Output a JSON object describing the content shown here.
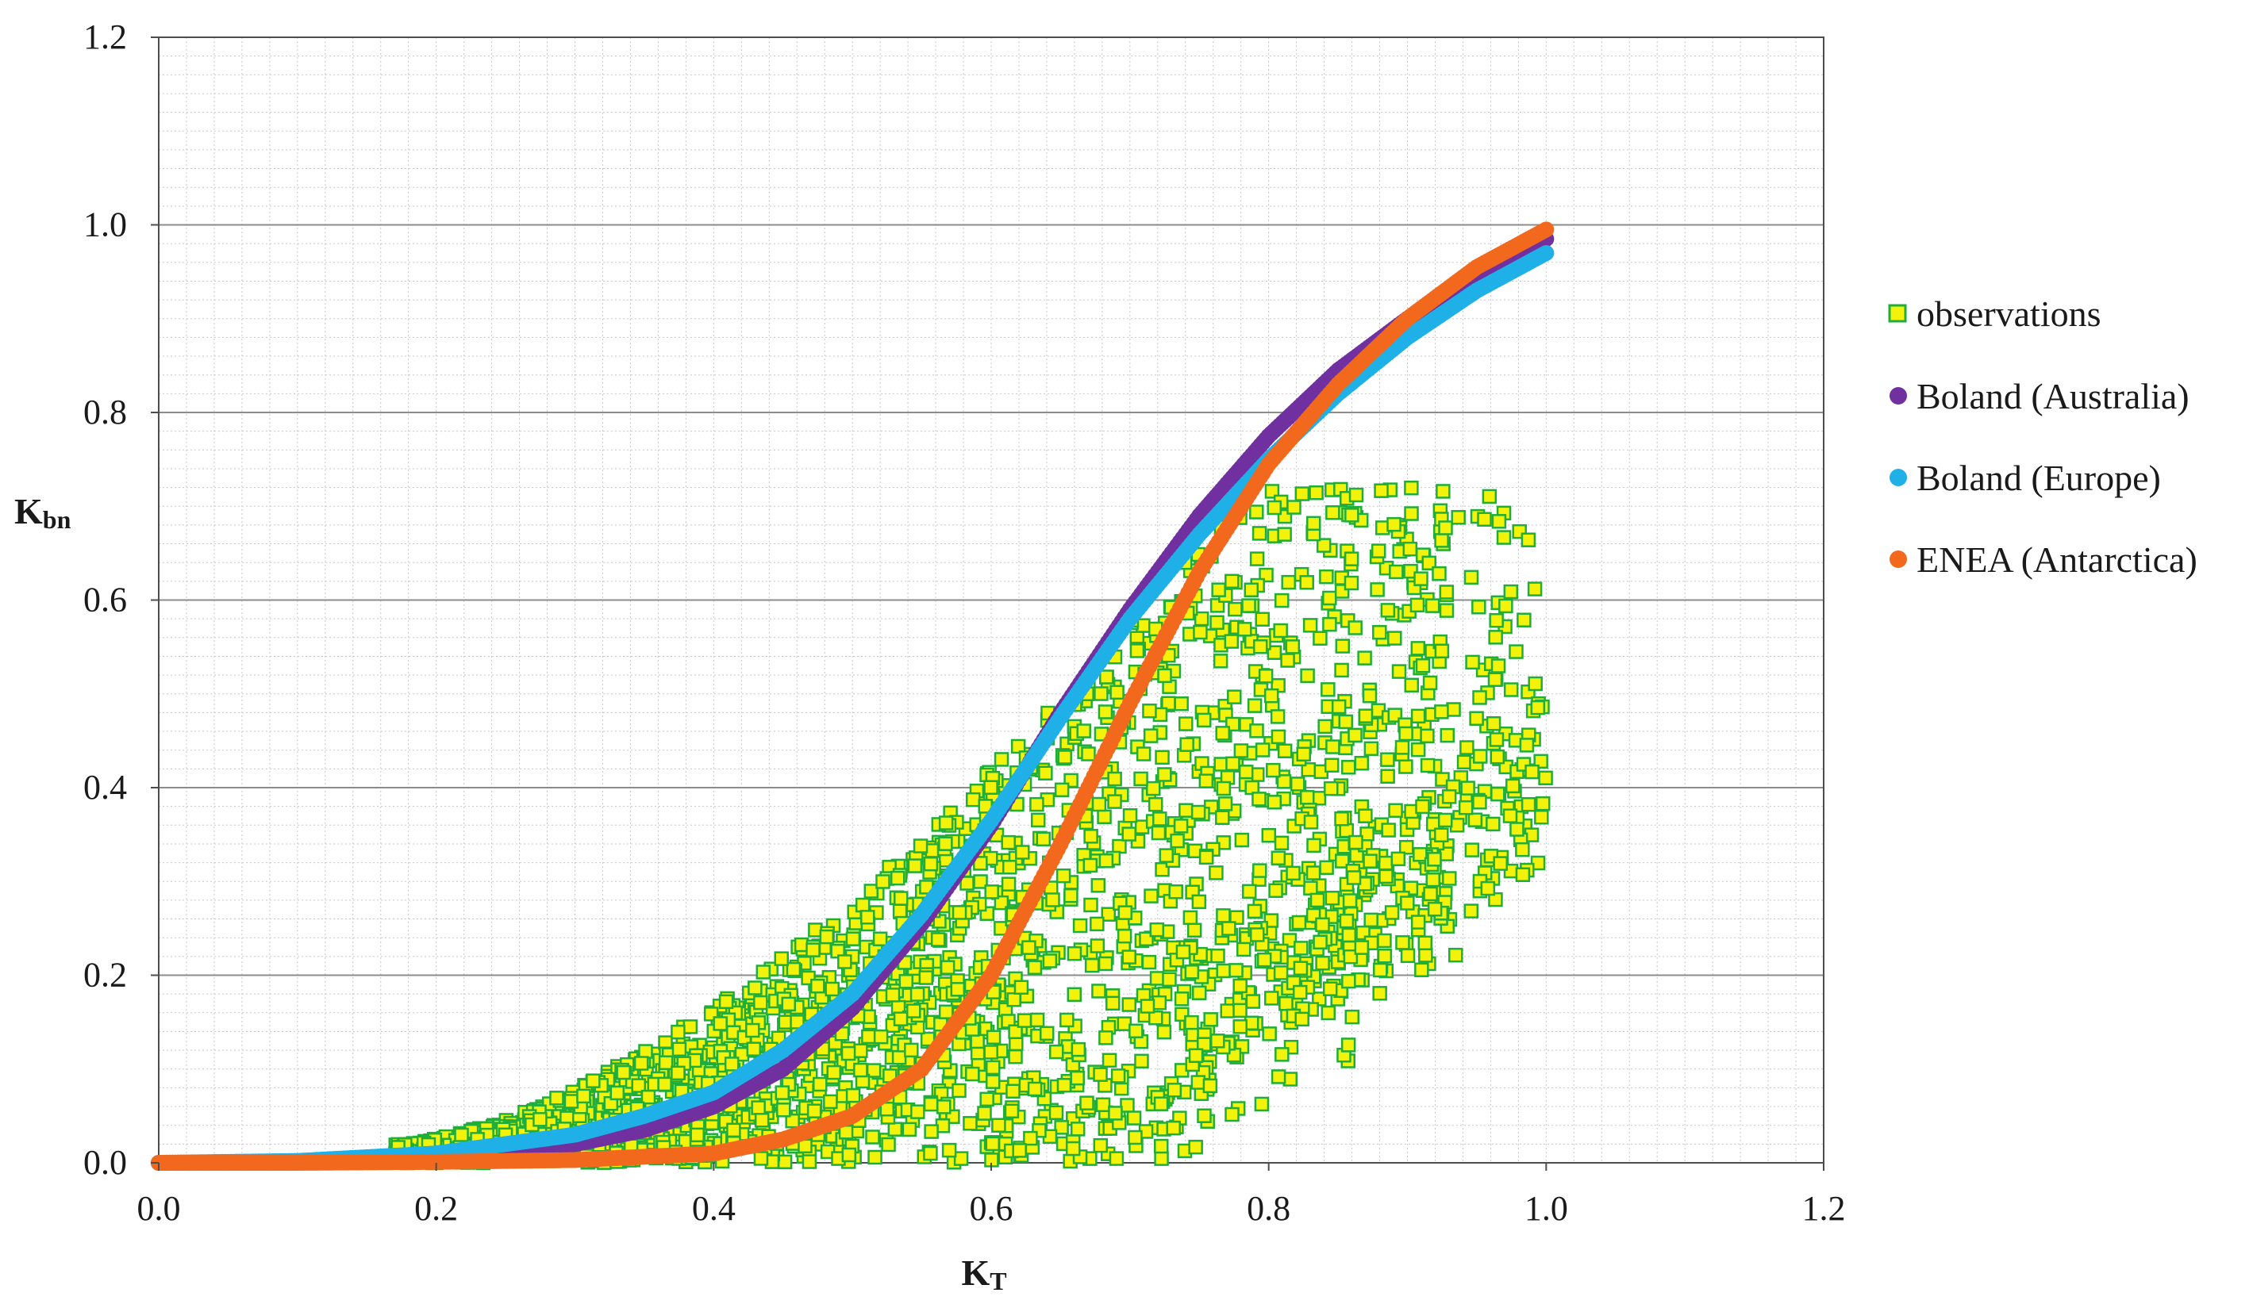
{
  "chart_data": {
    "type": "scatter",
    "title": "",
    "xlabel": {
      "main": "K",
      "sub": "T"
    },
    "ylabel": {
      "main": "K",
      "sub": "bn"
    },
    "xlim": [
      0.0,
      1.2
    ],
    "ylim": [
      0.0,
      1.2
    ],
    "xticks": [
      "0.0",
      "0.2",
      "0.4",
      "0.6",
      "0.8",
      "1.0",
      "1.2"
    ],
    "yticks": [
      "0.0",
      "0.2",
      "0.4",
      "0.6",
      "0.8",
      "1.0",
      "1.2"
    ],
    "grid": {
      "major_y": true,
      "minor": true
    },
    "legend_position": "right",
    "series": [
      {
        "name": "observations",
        "marker": "square",
        "fill": "#f2f20a",
        "stroke": "#1fae3a",
        "summary": {
          "x_range": [
            0.17,
            1.0
          ],
          "y_range": [
            0.0,
            0.72
          ],
          "description_points": [
            [
              0.18,
              0.02
            ],
            [
              0.2,
              0.04
            ],
            [
              0.22,
              0.06
            ],
            [
              0.25,
              0.1
            ],
            [
              0.28,
              0.12
            ],
            [
              0.3,
              0.15
            ],
            [
              0.33,
              0.17
            ],
            [
              0.35,
              0.2
            ],
            [
              0.38,
              0.22
            ],
            [
              0.4,
              0.25
            ],
            [
              0.42,
              0.27
            ],
            [
              0.45,
              0.33
            ],
            [
              0.48,
              0.4
            ],
            [
              0.5,
              0.43
            ],
            [
              0.55,
              0.48
            ],
            [
              0.6,
              0.54
            ],
            [
              0.65,
              0.58
            ],
            [
              0.7,
              0.62
            ],
            [
              0.75,
              0.7
            ],
            [
              0.8,
              0.71
            ],
            [
              0.85,
              0.7
            ],
            [
              0.9,
              0.7
            ],
            [
              0.95,
              0.7
            ],
            [
              1.0,
              0.65
            ],
            [
              0.97,
              0.56
            ],
            [
              0.95,
              0.42
            ],
            [
              0.92,
              0.35
            ],
            [
              0.9,
              0.27
            ],
            [
              0.85,
              0.22
            ],
            [
              0.8,
              0.13
            ],
            [
              0.78,
              0.12
            ],
            [
              0.74,
              0.1
            ],
            [
              0.7,
              0.05
            ],
            [
              0.68,
              0.03
            ],
            [
              0.66,
              0.0
            ],
            [
              0.6,
              0.0
            ],
            [
              0.5,
              0.0
            ],
            [
              0.4,
              0.0
            ],
            [
              0.3,
              0.0
            ],
            [
              0.2,
              0.0
            ]
          ]
        }
      },
      {
        "name": "Boland (Australia)",
        "marker": "circle",
        "color": "#7030a0",
        "points": [
          [
            0.0,
            0.0
          ],
          [
            0.1,
            0.001
          ],
          [
            0.2,
            0.005
          ],
          [
            0.3,
            0.02
          ],
          [
            0.35,
            0.035
          ],
          [
            0.4,
            0.06
          ],
          [
            0.45,
            0.1
          ],
          [
            0.5,
            0.165
          ],
          [
            0.55,
            0.255
          ],
          [
            0.6,
            0.36
          ],
          [
            0.65,
            0.48
          ],
          [
            0.7,
            0.59
          ],
          [
            0.75,
            0.69
          ],
          [
            0.8,
            0.775
          ],
          [
            0.85,
            0.845
          ],
          [
            0.9,
            0.9
          ],
          [
            0.95,
            0.945
          ],
          [
            1.0,
            0.985
          ]
        ]
      },
      {
        "name": "Boland (Europe)",
        "marker": "circle",
        "color": "#1fb0e8",
        "points": [
          [
            0.0,
            0.0
          ],
          [
            0.1,
            0.002
          ],
          [
            0.2,
            0.01
          ],
          [
            0.3,
            0.03
          ],
          [
            0.35,
            0.05
          ],
          [
            0.4,
            0.075
          ],
          [
            0.45,
            0.12
          ],
          [
            0.5,
            0.18
          ],
          [
            0.55,
            0.265
          ],
          [
            0.6,
            0.365
          ],
          [
            0.65,
            0.475
          ],
          [
            0.7,
            0.58
          ],
          [
            0.75,
            0.67
          ],
          [
            0.8,
            0.75
          ],
          [
            0.85,
            0.82
          ],
          [
            0.9,
            0.88
          ],
          [
            0.95,
            0.93
          ],
          [
            1.0,
            0.97
          ]
        ]
      },
      {
        "name": "ENEA (Antarctica)",
        "marker": "circle",
        "color": "#f2691d",
        "points": [
          [
            0.0,
            0.0
          ],
          [
            0.1,
            0.0
          ],
          [
            0.2,
            0.001
          ],
          [
            0.3,
            0.003
          ],
          [
            0.4,
            0.01
          ],
          [
            0.45,
            0.025
          ],
          [
            0.5,
            0.05
          ],
          [
            0.55,
            0.1
          ],
          [
            0.6,
            0.2
          ],
          [
            0.65,
            0.34
          ],
          [
            0.7,
            0.49
          ],
          [
            0.75,
            0.63
          ],
          [
            0.8,
            0.745
          ],
          [
            0.85,
            0.83
          ],
          [
            0.9,
            0.9
          ],
          [
            0.95,
            0.955
          ],
          [
            1.0,
            0.995
          ]
        ]
      }
    ]
  }
}
